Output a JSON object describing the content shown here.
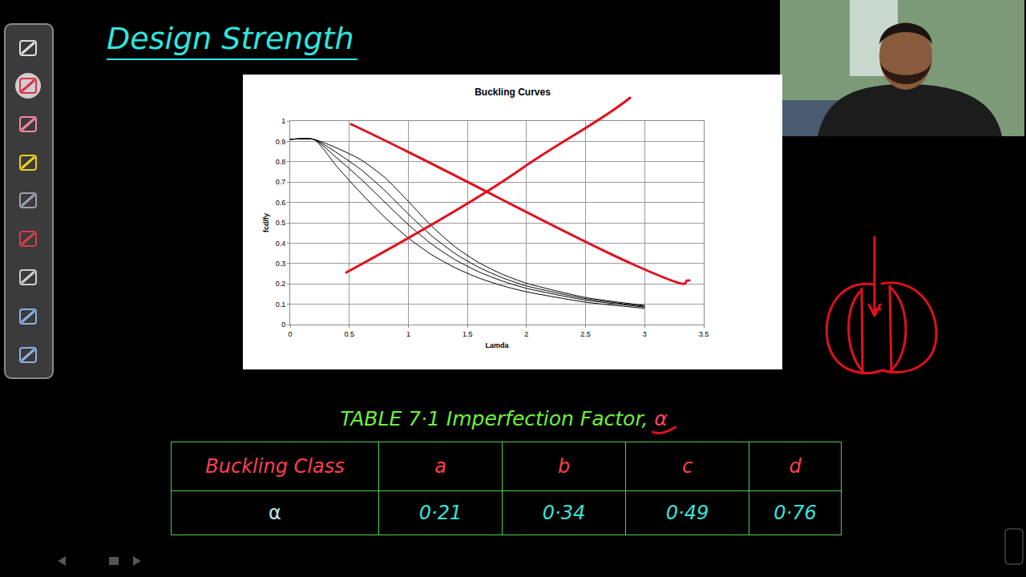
{
  "header": {
    "title": "Design Strength"
  },
  "chart_data": {
    "type": "line",
    "title": "Buckling Curves",
    "x_label": "Lamda",
    "y_label": "fcd/fy",
    "x": [
      0,
      0.2,
      0.4,
      0.6,
      0.8,
      1.0,
      1.2,
      1.4,
      1.6,
      1.8,
      2.0,
      2.5,
      3.0
    ],
    "series": [
      {
        "color": "#000000",
        "line_style": "solid",
        "values": [
          0.91,
          0.91,
          0.866,
          0.809,
          0.723,
          0.605,
          0.482,
          0.38,
          0.303,
          0.246,
          0.203,
          0.133,
          0.094
        ]
      },
      {
        "color": "#000000",
        "line_style": "solid",
        "values": [
          0.91,
          0.91,
          0.842,
          0.761,
          0.659,
          0.543,
          0.435,
          0.347,
          0.28,
          0.229,
          0.19,
          0.127,
          0.09
        ]
      },
      {
        "color": "#000000",
        "line_style": "solid",
        "values": [
          0.91,
          0.91,
          0.816,
          0.714,
          0.602,
          0.491,
          0.394,
          0.317,
          0.258,
          0.213,
          0.178,
          0.12,
          0.086
        ]
      },
      {
        "color": "#000000",
        "line_style": "solid",
        "values": [
          0.91,
          0.91,
          0.773,
          0.645,
          0.527,
          0.425,
          0.342,
          0.278,
          0.228,
          0.19,
          0.161,
          0.11,
          0.08
        ]
      }
    ],
    "xlim": [
      0,
      3.5
    ],
    "xticks": [
      0,
      0.5,
      1,
      1.5,
      2,
      2.5,
      3,
      3.5
    ],
    "ylim": [
      0,
      1
    ],
    "yticks": [
      0,
      0.1,
      0.2,
      0.3,
      0.4,
      0.5,
      0.6,
      0.7,
      0.8,
      0.9,
      1
    ],
    "grid": true
  },
  "table": {
    "title": "TABLE 7·1 Imperfection Factor, α",
    "header": [
      "Buckling Class",
      "a",
      "b",
      "c",
      "d"
    ],
    "rows": [
      [
        "α",
        "0·21",
        "0·34",
        "0·49",
        "0·76"
      ]
    ]
  }
}
